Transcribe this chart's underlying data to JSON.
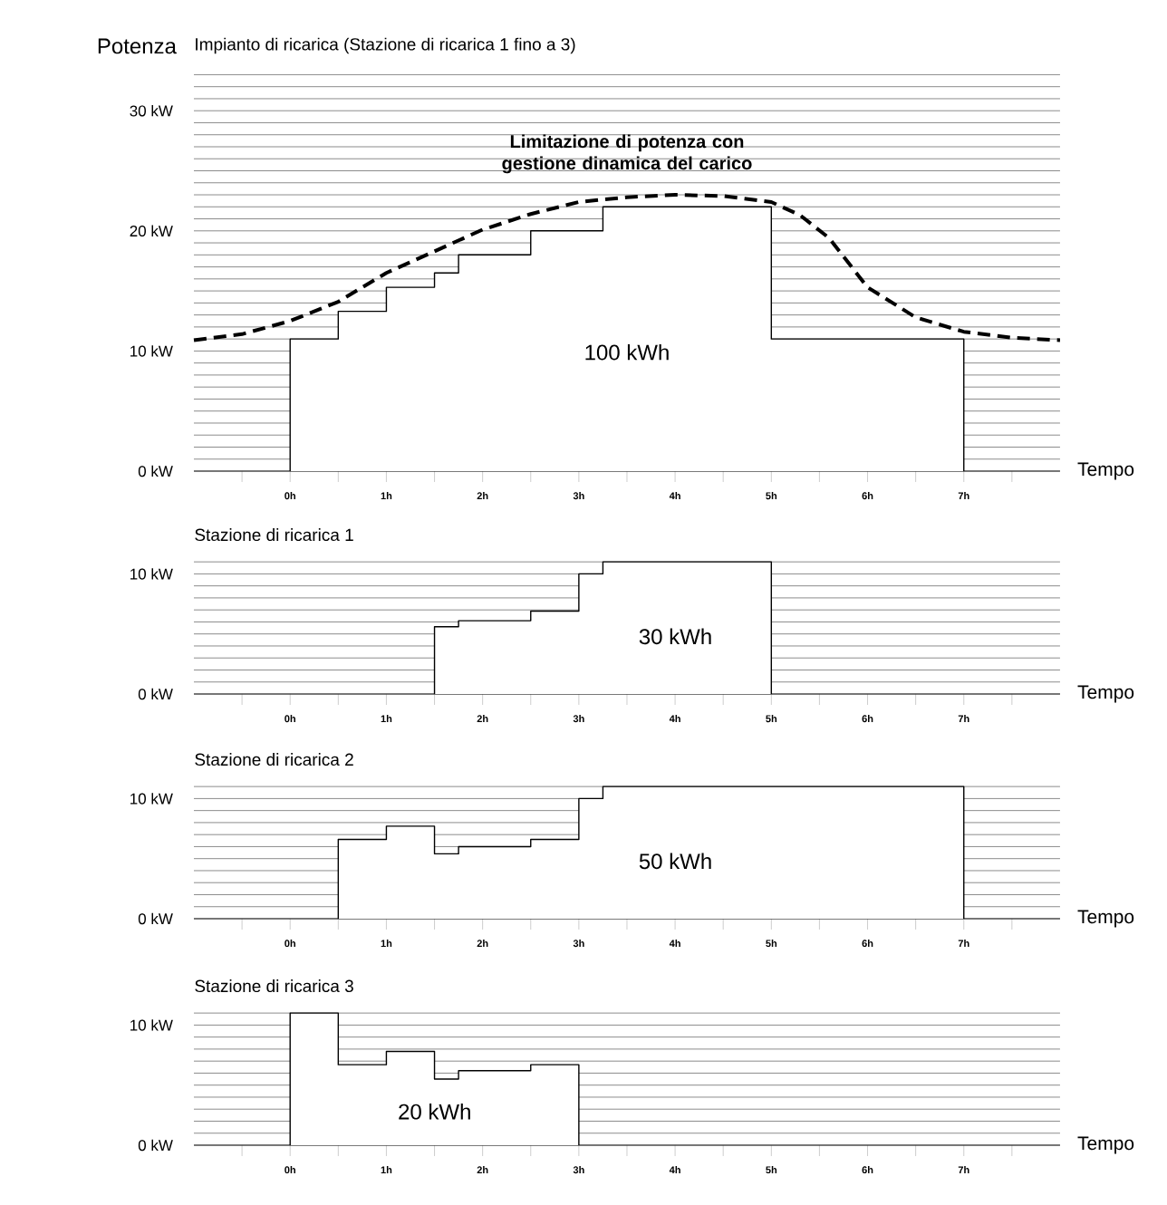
{
  "chart_data": [
    {
      "type": "area",
      "title": "Impianto di ricarica (Stazione di ricarica 1 fino a 3)",
      "xlabel": "Tempo",
      "ylabel": "Potenza",
      "xlim": [
        -1,
        8
      ],
      "ylim": [
        0,
        33
      ],
      "grid": "y",
      "xticks": [
        {
          "value": -0.5,
          "label": null
        },
        {
          "value": 0,
          "label": "0h"
        },
        {
          "value": 0.5,
          "label": null
        },
        {
          "value": 1,
          "label": "1h"
        },
        {
          "value": 1.5,
          "label": null
        },
        {
          "value": 2,
          "label": "2h"
        },
        {
          "value": 2.5,
          "label": null
        },
        {
          "value": 3,
          "label": "3h"
        },
        {
          "value": 3.5,
          "label": null
        },
        {
          "value": 4,
          "label": "4h"
        },
        {
          "value": 4.5,
          "label": null
        },
        {
          "value": 5,
          "label": "5h"
        },
        {
          "value": 5.5,
          "label": null
        },
        {
          "value": 6,
          "label": "6h"
        },
        {
          "value": 6.5,
          "label": null
        },
        {
          "value": 7,
          "label": "7h"
        },
        {
          "value": 7.5,
          "label": null
        }
      ],
      "yticks": [
        {
          "value": 0,
          "label": "0 kW"
        },
        {
          "value": 1,
          "label": null
        },
        {
          "value": 2,
          "label": null
        },
        {
          "value": 3,
          "label": null
        },
        {
          "value": 4,
          "label": null
        },
        {
          "value": 5,
          "label": null
        },
        {
          "value": 6,
          "label": null
        },
        {
          "value": 7,
          "label": null
        },
        {
          "value": 8,
          "label": null
        },
        {
          "value": 9,
          "label": null
        },
        {
          "value": 10,
          "label": "10 kW"
        },
        {
          "value": 11,
          "label": null
        },
        {
          "value": 12,
          "label": null
        },
        {
          "value": 13,
          "label": null
        },
        {
          "value": 14,
          "label": null
        },
        {
          "value": 15,
          "label": null
        },
        {
          "value": 16,
          "label": null
        },
        {
          "value": 17,
          "label": null
        },
        {
          "value": 18,
          "label": null
        },
        {
          "value": 19,
          "label": null
        },
        {
          "value": 20,
          "label": "20 kW"
        },
        {
          "value": 21,
          "label": null
        },
        {
          "value": 22,
          "label": null
        },
        {
          "value": 23,
          "label": null
        },
        {
          "value": 24,
          "label": null
        },
        {
          "value": 25,
          "label": null
        },
        {
          "value": 26,
          "label": null
        },
        {
          "value": 27,
          "label": null
        },
        {
          "value": 28,
          "label": null
        },
        {
          "value": 29,
          "label": null
        },
        {
          "value": 30,
          "label": "30 kW"
        },
        {
          "value": 31,
          "label": null
        },
        {
          "value": 32,
          "label": null
        },
        {
          "value": 33,
          "label": null
        }
      ],
      "series": [
        {
          "color": "#ffffff",
          "x": [
            0,
            0,
            0.5,
            0.5,
            1,
            1,
            1.5,
            1.5,
            1.75,
            1.75,
            2.5,
            2.5,
            3.25,
            3.25,
            5,
            5,
            7,
            7
          ],
          "values": [
            0,
            11,
            11,
            13.3,
            13.3,
            15.3,
            15.3,
            16.5,
            16.5,
            18,
            18,
            20,
            20,
            22,
            22,
            11,
            11,
            0
          ]
        },
        {
          "type": "line",
          "color": "#000000",
          "line_style": "dashed",
          "x": [
            -1,
            -0.5,
            0,
            0.5,
            1,
            1.5,
            2,
            2.5,
            3,
            3.5,
            4,
            4.5,
            5,
            5.3,
            5.6,
            6,
            6.5,
            7,
            7.5,
            8
          ],
          "values": [
            10.9,
            11.4,
            12.5,
            14.1,
            16.5,
            18.3,
            20.1,
            21.4,
            22.4,
            22.8,
            23,
            22.9,
            22.4,
            21.3,
            19.4,
            15.3,
            12.8,
            11.6,
            11.1,
            10.9
          ]
        }
      ],
      "annotations": [
        "100 kWh",
        "Limitazione di potenza con gestione dinamica del carico"
      ]
    },
    {
      "type": "area",
      "title": "Stazione di ricarica 1",
      "xlabel": "Tempo",
      "xlim": [
        -1,
        8
      ],
      "ylim": [
        0,
        11
      ],
      "grid": "y",
      "xticks": [
        {
          "value": -0.5,
          "label": null
        },
        {
          "value": 0,
          "label": "0h"
        },
        {
          "value": 0.5,
          "label": null
        },
        {
          "value": 1,
          "label": "1h"
        },
        {
          "value": 1.5,
          "label": null
        },
        {
          "value": 2,
          "label": "2h"
        },
        {
          "value": 2.5,
          "label": null
        },
        {
          "value": 3,
          "label": "3h"
        },
        {
          "value": 3.5,
          "label": null
        },
        {
          "value": 4,
          "label": "4h"
        },
        {
          "value": 4.5,
          "label": null
        },
        {
          "value": 5,
          "label": "5h"
        },
        {
          "value": 5.5,
          "label": null
        },
        {
          "value": 6,
          "label": "6h"
        },
        {
          "value": 6.5,
          "label": null
        },
        {
          "value": 7,
          "label": "7h"
        },
        {
          "value": 7.5,
          "label": null
        }
      ],
      "yticks": [
        {
          "value": 0,
          "label": "0 kW"
        },
        {
          "value": 1,
          "label": null
        },
        {
          "value": 2,
          "label": null
        },
        {
          "value": 3,
          "label": null
        },
        {
          "value": 4,
          "label": null
        },
        {
          "value": 5,
          "label": null
        },
        {
          "value": 6,
          "label": null
        },
        {
          "value": 7,
          "label": null
        },
        {
          "value": 8,
          "label": null
        },
        {
          "value": 9,
          "label": null
        },
        {
          "value": 10,
          "label": "10 kW"
        },
        {
          "value": 11,
          "label": null
        }
      ],
      "series": [
        {
          "color": "#ffffff",
          "x": [
            1.5,
            1.5,
            1.75,
            1.75,
            2.5,
            2.5,
            3,
            3,
            3.25,
            3.25,
            5,
            5
          ],
          "values": [
            0,
            5.6,
            5.6,
            6.1,
            6.1,
            6.9,
            6.9,
            10,
            10,
            11,
            11,
            0
          ]
        }
      ],
      "annotations": [
        "30 kWh"
      ]
    },
    {
      "type": "area",
      "title": "Stazione di ricarica 2",
      "xlabel": "Tempo",
      "xlim": [
        -1,
        8
      ],
      "ylim": [
        0,
        11
      ],
      "grid": "y",
      "xticks": [
        {
          "value": -0.5,
          "label": null
        },
        {
          "value": 0,
          "label": "0h"
        },
        {
          "value": 0.5,
          "label": null
        },
        {
          "value": 1,
          "label": "1h"
        },
        {
          "value": 1.5,
          "label": null
        },
        {
          "value": 2,
          "label": "2h"
        },
        {
          "value": 2.5,
          "label": null
        },
        {
          "value": 3,
          "label": "3h"
        },
        {
          "value": 3.5,
          "label": null
        },
        {
          "value": 4,
          "label": "4h"
        },
        {
          "value": 4.5,
          "label": null
        },
        {
          "value": 5,
          "label": "5h"
        },
        {
          "value": 5.5,
          "label": null
        },
        {
          "value": 6,
          "label": "6h"
        },
        {
          "value": 6.5,
          "label": null
        },
        {
          "value": 7,
          "label": "7h"
        },
        {
          "value": 7.5,
          "label": null
        }
      ],
      "yticks": [
        {
          "value": 0,
          "label": "0 kW"
        },
        {
          "value": 1,
          "label": null
        },
        {
          "value": 2,
          "label": null
        },
        {
          "value": 3,
          "label": null
        },
        {
          "value": 4,
          "label": null
        },
        {
          "value": 5,
          "label": null
        },
        {
          "value": 6,
          "label": null
        },
        {
          "value": 7,
          "label": null
        },
        {
          "value": 8,
          "label": null
        },
        {
          "value": 9,
          "label": null
        },
        {
          "value": 10,
          "label": "10 kW"
        },
        {
          "value": 11,
          "label": null
        }
      ],
      "series": [
        {
          "color": "#ffffff",
          "x": [
            0.5,
            0.5,
            1,
            1,
            1.5,
            1.5,
            1.75,
            1.75,
            2.5,
            2.5,
            3,
            3,
            3.25,
            3.25,
            7,
            7
          ],
          "values": [
            0,
            6.6,
            6.6,
            7.7,
            7.7,
            5.4,
            5.4,
            6,
            6,
            6.6,
            6.6,
            10,
            10,
            11,
            11,
            0
          ]
        }
      ],
      "annotations": [
        "50 kWh"
      ]
    },
    {
      "type": "area",
      "title": "Stazione di ricarica 3",
      "xlabel": "Tempo",
      "xlim": [
        -1,
        8
      ],
      "ylim": [
        0,
        11
      ],
      "grid": "y",
      "xticks": [
        {
          "value": -0.5,
          "label": null
        },
        {
          "value": 0,
          "label": "0h"
        },
        {
          "value": 0.5,
          "label": null
        },
        {
          "value": 1,
          "label": "1h"
        },
        {
          "value": 1.5,
          "label": null
        },
        {
          "value": 2,
          "label": "2h"
        },
        {
          "value": 2.5,
          "label": null
        },
        {
          "value": 3,
          "label": "3h"
        },
        {
          "value": 3.5,
          "label": null
        },
        {
          "value": 4,
          "label": "4h"
        },
        {
          "value": 4.5,
          "label": null
        },
        {
          "value": 5,
          "label": "5h"
        },
        {
          "value": 5.5,
          "label": null
        },
        {
          "value": 6,
          "label": "6h"
        },
        {
          "value": 6.5,
          "label": null
        },
        {
          "value": 7,
          "label": "7h"
        },
        {
          "value": 7.5,
          "label": null
        }
      ],
      "yticks": [
        {
          "value": 0,
          "label": "0 kW"
        },
        {
          "value": 1,
          "label": null
        },
        {
          "value": 2,
          "label": null
        },
        {
          "value": 3,
          "label": null
        },
        {
          "value": 4,
          "label": null
        },
        {
          "value": 5,
          "label": null
        },
        {
          "value": 6,
          "label": null
        },
        {
          "value": 7,
          "label": null
        },
        {
          "value": 8,
          "label": null
        },
        {
          "value": 9,
          "label": null
        },
        {
          "value": 10,
          "label": "10 kW"
        },
        {
          "value": 11,
          "label": null
        }
      ],
      "series": [
        {
          "color": "#ffffff",
          "x": [
            0,
            0,
            0.5,
            0.5,
            1,
            1,
            1.5,
            1.5,
            1.75,
            1.75,
            2.5,
            2.5,
            3,
            3
          ],
          "values": [
            0,
            11,
            11,
            6.7,
            6.7,
            7.8,
            7.8,
            5.5,
            5.5,
            6.2,
            6.2,
            6.7,
            6.7,
            0
          ]
        }
      ],
      "annotations": [
        "20 kWh"
      ]
    }
  ]
}
